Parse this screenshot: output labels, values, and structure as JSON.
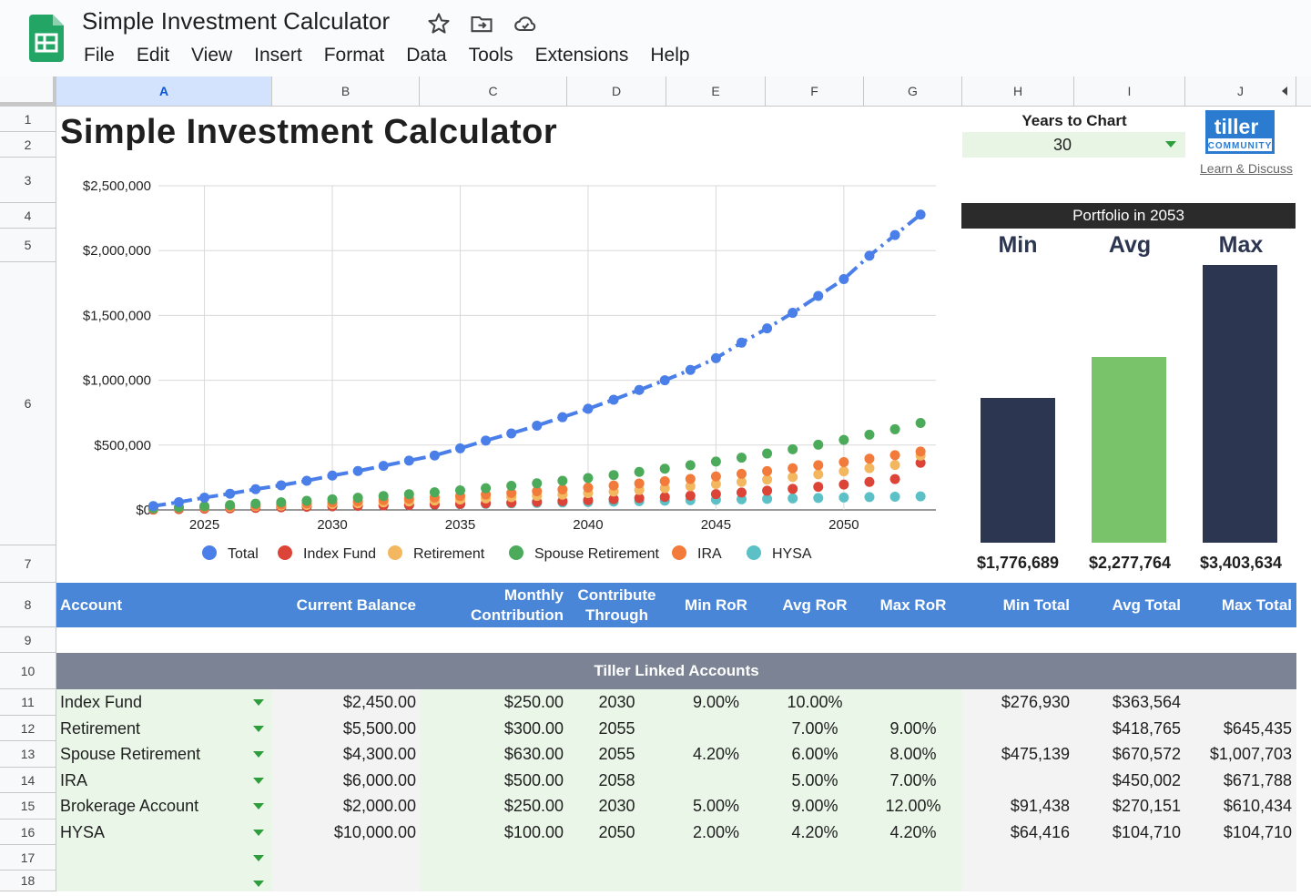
{
  "app": {
    "doc_title": "Simple Investment Calculator",
    "menu": [
      "File",
      "Edit",
      "View",
      "Insert",
      "Format",
      "Data",
      "Tools",
      "Extensions",
      "Help"
    ],
    "icons": {
      "star": "star-icon",
      "move": "move-to-folder-icon",
      "cloud": "cloud-status-icon"
    }
  },
  "grid": {
    "columns": [
      "A",
      "B",
      "C",
      "D",
      "E",
      "F",
      "G",
      "H",
      "I",
      "J"
    ],
    "rows": [
      "1",
      "2",
      "3",
      "4",
      "5",
      "6",
      "7",
      "8",
      "9",
      "10",
      "11",
      "12",
      "13",
      "14",
      "15",
      "16",
      "17",
      "18"
    ]
  },
  "sheet": {
    "title": "Simple Investment Calculator",
    "years_label": "Years to Chart",
    "years_value": "30",
    "tiller_logo_text": "tiller",
    "tiller_logo_sub": "COMMUNITY",
    "learn_link": "Learn & Discuss"
  },
  "portfolio": {
    "header": "Portfolio in 2053",
    "labels": [
      "Min",
      "Avg",
      "Max"
    ],
    "values": [
      1776689,
      2277764,
      3403634
    ],
    "totals": [
      "$1,776,689",
      "$2,277,764",
      "$3,403,634"
    ],
    "colors": [
      "#2c3651",
      "#79c36a",
      "#2c3651"
    ]
  },
  "table": {
    "headers": {
      "account": "Account",
      "balance": "Current Balance",
      "monthly_1": "Monthly",
      "monthly_2": "Contribution",
      "through_1": "Contribute",
      "through_2": "Through",
      "min_ror": "Min RoR",
      "avg_ror": "Avg RoR",
      "max_ror": "Max RoR",
      "min_total": "Min Total",
      "avg_total": "Avg Total",
      "max_total": "Max Total"
    },
    "section": "Tiller Linked Accounts",
    "rows": [
      {
        "account": "Index Fund",
        "balance": "$2,450.00",
        "monthly": "$250.00",
        "through": "2030",
        "min": "9.00%",
        "avg": "10.00%",
        "max": "",
        "min_total": "$276,930",
        "avg_total": "$363,564",
        "max_total": ""
      },
      {
        "account": "Retirement",
        "balance": "$5,500.00",
        "monthly": "$300.00",
        "through": "2055",
        "min": "",
        "avg": "7.00%",
        "max": "9.00%",
        "min_total": "",
        "avg_total": "$418,765",
        "max_total": "$645,435"
      },
      {
        "account": "Spouse Retirement",
        "balance": "$4,300.00",
        "monthly": "$630.00",
        "through": "2055",
        "min": "4.20%",
        "avg": "6.00%",
        "max": "8.00%",
        "min_total": "$475,139",
        "avg_total": "$670,572",
        "max_total": "$1,007,703"
      },
      {
        "account": "IRA",
        "balance": "$6,000.00",
        "monthly": "$500.00",
        "through": "2058",
        "min": "",
        "avg": "5.00%",
        "max": "7.00%",
        "min_total": "",
        "avg_total": "$450,002",
        "max_total": "$671,788"
      },
      {
        "account": "Brokerage Account",
        "balance": "$2,000.00",
        "monthly": "$250.00",
        "through": "2030",
        "min": "5.00%",
        "avg": "9.00%",
        "max": "12.00%",
        "min_total": "$91,438",
        "avg_total": "$270,151",
        "max_total": "$610,434"
      },
      {
        "account": "HYSA",
        "balance": "$10,000.00",
        "monthly": "$100.00",
        "through": "2050",
        "min": "2.00%",
        "avg": "4.20%",
        "max": "4.20%",
        "min_total": "$64,416",
        "avg_total": "$104,710",
        "max_total": "$104,710"
      },
      {
        "account": "",
        "balance": "",
        "monthly": "",
        "through": "",
        "min": "",
        "avg": "",
        "max": "",
        "min_total": "",
        "avg_total": "",
        "max_total": ""
      },
      {
        "account": "",
        "balance": "",
        "monthly": "",
        "through": "",
        "min": "",
        "avg": "",
        "max": "",
        "min_total": "",
        "avg_total": "",
        "max_total": ""
      }
    ]
  },
  "chart_data": {
    "type": "scatter",
    "x_ticks": [
      "2025",
      "2030",
      "2035",
      "2040",
      "2045",
      "2050"
    ],
    "y_ticks": [
      "$0",
      "$500,000",
      "$1,000,000",
      "$1,500,000",
      "$2,000,000",
      "$2,500,000"
    ],
    "xlim": [
      2023.2,
      2053.6
    ],
    "ylim": [
      0,
      2500000
    ],
    "legend_position": "bottom",
    "grid": true,
    "x": [
      2023,
      2024,
      2025,
      2026,
      2027,
      2028,
      2029,
      2030,
      2031,
      2032,
      2033,
      2034,
      2035,
      2036,
      2037,
      2038,
      2039,
      2040,
      2041,
      2042,
      2043,
      2044,
      2045,
      2046,
      2047,
      2048,
      2049,
      2050,
      2051,
      2052,
      2053
    ],
    "series": [
      {
        "name": "Total",
        "color": "#4a7ee8",
        "trend_line": true,
        "values": [
          30000,
          60000,
          95000,
          125000,
          160000,
          190000,
          225000,
          265000,
          300000,
          340000,
          380000,
          420000,
          475000,
          535000,
          590000,
          650000,
          715000,
          780000,
          850000,
          925000,
          1000000,
          1080000,
          1170000,
          1290000,
          1400000,
          1520000,
          1650000,
          1780000,
          1960000,
          2120000,
          2277764
        ]
      },
      {
        "name": "Index Fund",
        "color": "#db4437",
        "values": [
          2700,
          6000,
          9500,
          12500,
          16000,
          20500,
          25000,
          28500,
          31500,
          34500,
          38000,
          42000,
          46000,
          51000,
          56000,
          62000,
          68000,
          75000,
          83000,
          91000,
          100000,
          110000,
          122000,
          134000,
          148000,
          162000,
          178000,
          196000,
          216000,
          238000,
          363564
        ]
      },
      {
        "name": "Retirement",
        "color": "#f3b760",
        "values": [
          9000,
          14000,
          18500,
          23000,
          28000,
          33500,
          39000,
          45000,
          51000,
          58000,
          65000,
          72000,
          80000,
          89000,
          98000,
          108000,
          118000,
          129000,
          141000,
          154000,
          168000,
          183000,
          199000,
          216000,
          234000,
          254000,
          275000,
          298000,
          322000,
          347000,
          418765
        ]
      },
      {
        "name": "Spouse Retirement",
        "color": "#4caa5b",
        "values": [
          12000,
          20000,
          29000,
          38000,
          48000,
          59000,
          70000,
          82000,
          94000,
          107000,
          121000,
          136000,
          151000,
          168000,
          186000,
          205000,
          225000,
          246000,
          269000,
          293000,
          318000,
          345000,
          373000,
          403000,
          435000,
          468000,
          503000,
          540000,
          580000,
          622000,
          670572
        ]
      },
      {
        "name": "IRA",
        "color": "#f27a3a",
        "values": [
          9000,
          15000,
          21000,
          28000,
          35000,
          42000,
          50000,
          58000,
          67000,
          76000,
          86000,
          96000,
          107000,
          119000,
          131000,
          144000,
          158000,
          172000,
          188000,
          204000,
          221000,
          239000,
          258000,
          278000,
          299000,
          321000,
          345000,
          369000,
          395000,
          422000,
          450002
        ]
      },
      {
        "name": "HYSA",
        "color": "#5cc0c7",
        "values": [
          10500,
          13000,
          15500,
          18000,
          20500,
          23000,
          25500,
          28000,
          31000,
          34000,
          37000,
          40000,
          43500,
          47000,
          50500,
          54000,
          57500,
          61000,
          64500,
          68000,
          71500,
          75000,
          78500,
          82000,
          85500,
          89000,
          92500,
          96000,
          99000,
          102000,
          104710
        ]
      }
    ]
  }
}
